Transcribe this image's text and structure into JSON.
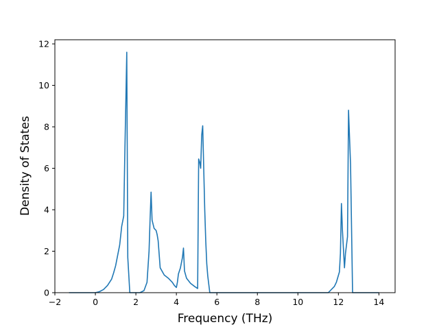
{
  "chart_data": {
    "type": "line",
    "title": "",
    "xlabel": "Frequency (THz)",
    "ylabel": "Density of States",
    "xlim": [
      -2.0,
      14.8
    ],
    "ylim": [
      0,
      12.2
    ],
    "x_ticks": [
      -2,
      0,
      2,
      4,
      6,
      8,
      10,
      12,
      14
    ],
    "y_ticks": [
      0,
      2,
      4,
      6,
      8,
      10,
      12
    ],
    "grid": false,
    "legend": "none",
    "series": [
      {
        "color": "#1f77b4",
        "x": [
          -1.3,
          0.0,
          0.2,
          0.4,
          0.6,
          0.8,
          0.9,
          1.0,
          1.1,
          1.2,
          1.3,
          1.4,
          1.45,
          1.5,
          1.55,
          1.6,
          1.7,
          1.8,
          2.0,
          2.2,
          2.4,
          2.55,
          2.65,
          2.7,
          2.75,
          2.8,
          2.9,
          3.0,
          3.05,
          3.1,
          3.2,
          3.4,
          3.6,
          3.8,
          3.9,
          4.0,
          4.05,
          4.1,
          4.2,
          4.3,
          4.35,
          4.4,
          4.5,
          4.7,
          4.9,
          5.05,
          5.1,
          5.15,
          5.2,
          5.25,
          5.3,
          5.35,
          5.4,
          5.45,
          5.5,
          5.55,
          5.65,
          5.75,
          5.8,
          6.0,
          8.0,
          10.0,
          11.5,
          11.8,
          11.9,
          12.05,
          12.1,
          12.15,
          12.2,
          12.3,
          12.35,
          12.45,
          12.5,
          12.55,
          12.6,
          12.7,
          12.75,
          12.8,
          14.0
        ],
        "values": [
          0,
          0,
          0.05,
          0.15,
          0.35,
          0.65,
          0.95,
          1.3,
          1.8,
          2.3,
          3.2,
          3.7,
          6.5,
          9.0,
          11.6,
          1.7,
          0.0,
          0.0,
          0.0,
          0.0,
          0.1,
          0.5,
          2.0,
          3.5,
          4.85,
          3.5,
          3.1,
          3.0,
          2.8,
          2.5,
          1.2,
          0.85,
          0.7,
          0.5,
          0.35,
          0.25,
          0.5,
          0.9,
          1.2,
          1.7,
          2.15,
          1.05,
          0.7,
          0.45,
          0.3,
          0.2,
          6.45,
          6.3,
          6.0,
          7.6,
          8.05,
          6.0,
          4.0,
          2.5,
          1.4,
          0.8,
          0.0,
          0.0,
          0.0,
          0.0,
          0.0,
          0.0,
          0.0,
          0.3,
          0.5,
          1.0,
          1.9,
          4.3,
          3.0,
          1.2,
          1.9,
          2.7,
          8.8,
          7.5,
          6.2,
          0.0,
          0.0,
          0.0,
          0.0
        ]
      }
    ]
  }
}
